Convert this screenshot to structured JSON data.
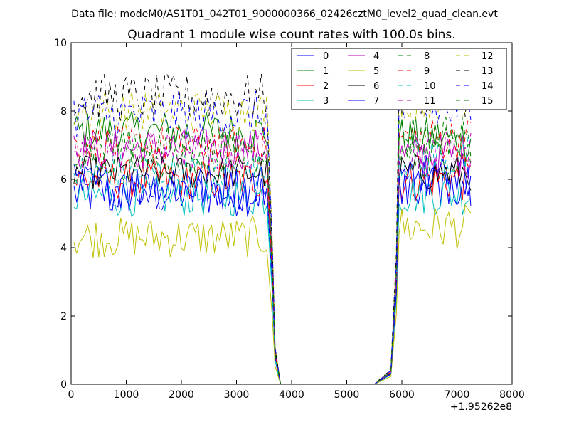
{
  "chart_data": {
    "type": "line",
    "suptitle": "Data file: modeM0/AS1T01_042T01_9000000366_02426cztM0_level2_quad_clean.evt",
    "title": "Quadrant 1 module wise count rates with 100.0s bins.",
    "xlabel": "",
    "ylabel": "",
    "x_offset_label": "+1.95262e8",
    "xlim": [
      0,
      8000
    ],
    "ylim": [
      0,
      10
    ],
    "xticks": [
      "0",
      "1000",
      "2000",
      "3000",
      "4000",
      "5000",
      "6000",
      "7000",
      "8000"
    ],
    "yticks": [
      "0",
      "2",
      "4",
      "6",
      "8",
      "10"
    ],
    "grid": false,
    "legend_position": "top-right",
    "legend_columns": 4,
    "time_segments": [
      {
        "start": 50,
        "end": 3550,
        "step": 50
      },
      {
        "start": 5850,
        "end": 7250,
        "step": 50
      }
    ],
    "gap_x": [
      3650,
      3700,
      3800,
      4000,
      4500,
      5000,
      5500,
      5800
    ],
    "gap_y_start": [
      3.0,
      0.8,
      0.0,
      0.0,
      0.0,
      0.0,
      0.0,
      0.0
    ],
    "gap_y_end_factor": [
      0.0,
      0.0,
      0.0,
      0.0,
      0.0,
      0.0,
      0.0,
      0.05
    ],
    "rise_x": [
      5900,
      5950
    ],
    "series": [
      {
        "name": "0",
        "color": "#0000ff",
        "dash": false,
        "level1": 5.6,
        "level2": 6.0,
        "amp": 0.35
      },
      {
        "name": "1",
        "color": "#008000",
        "dash": false,
        "level1": 7.4,
        "level2": 7.2,
        "amp": 0.3
      },
      {
        "name": "2",
        "color": "#ff0000",
        "dash": false,
        "level1": 6.0,
        "level2": 6.0,
        "amp": 0.3
      },
      {
        "name": "3",
        "color": "#00bfbf",
        "dash": false,
        "level1": 5.5,
        "level2": 5.6,
        "amp": 0.3
      },
      {
        "name": "4",
        "color": "#bf00bf",
        "dash": false,
        "level1": 6.9,
        "level2": 6.7,
        "amp": 0.3
      },
      {
        "name": "5",
        "color": "#bfbf00",
        "dash": false,
        "level1": 4.3,
        "level2": 4.6,
        "amp": 0.3
      },
      {
        "name": "6",
        "color": "#000000",
        "dash": false,
        "level1": 6.2,
        "level2": 6.2,
        "amp": 0.25
      },
      {
        "name": "7",
        "color": "#0000ff",
        "dash": false,
        "level1": 5.8,
        "level2": 6.0,
        "amp": 0.35
      },
      {
        "name": "8",
        "color": "#008000",
        "dash": true,
        "level1": 6.5,
        "level2": 6.7,
        "amp": 0.3
      },
      {
        "name": "9",
        "color": "#ff0000",
        "dash": true,
        "level1": 7.0,
        "level2": 7.2,
        "amp": 0.3
      },
      {
        "name": "10",
        "color": "#00bfbf",
        "dash": true,
        "level1": 6.2,
        "level2": 6.6,
        "amp": 0.3
      },
      {
        "name": "11",
        "color": "#bf00bf",
        "dash": true,
        "level1": 6.8,
        "level2": 6.8,
        "amp": 0.3
      },
      {
        "name": "12",
        "color": "#bfbf00",
        "dash": true,
        "level1": 8.0,
        "level2": 8.4,
        "amp": 0.3
      },
      {
        "name": "13",
        "color": "#000000",
        "dash": true,
        "level1": 8.4,
        "level2": 8.6,
        "amp": 0.35
      },
      {
        "name": "14",
        "color": "#0000ff",
        "dash": true,
        "level1": 7.9,
        "level2": 8.0,
        "amp": 0.35
      },
      {
        "name": "15",
        "color": "#008000",
        "dash": true,
        "level1": 7.0,
        "level2": 7.3,
        "amp": 0.3
      }
    ]
  }
}
